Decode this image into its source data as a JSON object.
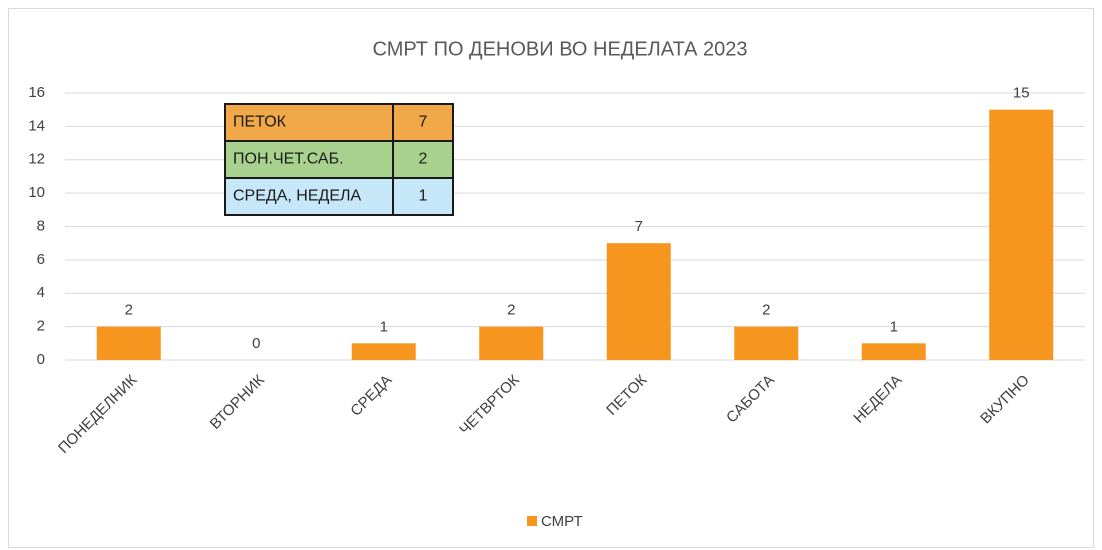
{
  "chart_data": {
    "type": "bar",
    "title": "СМРТ ПО ДЕНОВИ ВО НЕДЕЛАТА 2023",
    "categories": [
      "ПОНЕДЕЛНИК",
      "ВТОРНИК",
      "СРЕДА",
      "ЧЕТВРТОК",
      "ПЕТОК",
      "САБОТА",
      "НЕДЕЛА",
      "ВКУПНО"
    ],
    "series": [
      {
        "name": "СМРТ",
        "color": "#f7961e",
        "values": [
          2,
          0,
          1,
          2,
          7,
          2,
          1,
          15
        ]
      }
    ],
    "ylim": [
      0,
      16
    ],
    "yticks": [
      0,
      2,
      4,
      6,
      8,
      10,
      12,
      14,
      16
    ],
    "grid": true,
    "legend": "bottom",
    "table": {
      "rows": [
        {
          "label": "ПЕТОК",
          "value": 7,
          "color": "#f0a848"
        },
        {
          "label": "ПОН.ЧЕТ.САБ.",
          "value": 2,
          "color": "#a9d18e"
        },
        {
          "label": "СРЕДА, НЕДЕЛА",
          "value": 1,
          "color": "#c6e7f8"
        }
      ]
    }
  }
}
